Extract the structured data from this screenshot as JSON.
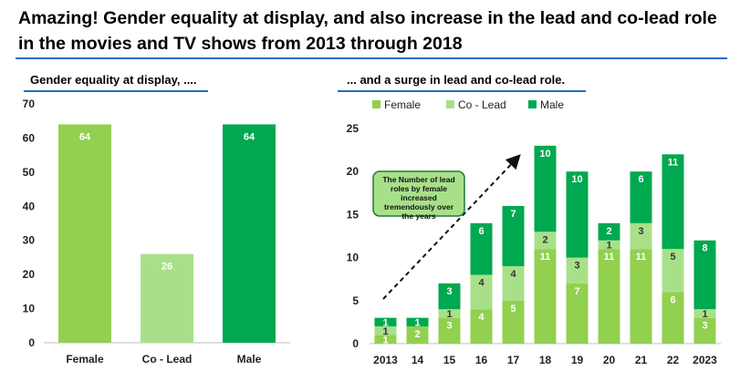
{
  "page": {
    "title": "Amazing! Gender equality at display, and also increase in the lead and co-lead role in the movies and TV shows from 2013 through 2018"
  },
  "colors": {
    "female": "#92d050",
    "colead": "#a8e08a",
    "male": "#00a84f",
    "accent_rule": "#1f6fc5",
    "callout_fill": "#a8e08a",
    "callout_border": "#1e7a3a"
  },
  "chart_data": [
    {
      "type": "bar",
      "title": "Gender equality at display, ....",
      "categories": [
        "Female",
        "Co - Lead",
        "Male"
      ],
      "values": [
        64,
        26,
        64
      ],
      "bar_colors": [
        "#92d050",
        "#a8e08a",
        "#00a84f"
      ],
      "ylim": [
        0,
        70
      ],
      "yticks": [
        0,
        10,
        20,
        30,
        40,
        50,
        60,
        70
      ],
      "xlabel": "",
      "ylabel": "",
      "grid": false
    },
    {
      "type": "bar",
      "stacked": true,
      "title": "... and a surge in lead and co-lead role.",
      "categories": [
        "2013",
        "14",
        "15",
        "16",
        "17",
        "18",
        "19",
        "20",
        "21",
        "22",
        "2023"
      ],
      "series": [
        {
          "name": "Female",
          "color": "#92d050",
          "values": [
            1,
            2,
            3,
            4,
            5,
            11,
            7,
            11,
            11,
            6,
            3
          ]
        },
        {
          "name": "Co - Lead",
          "color": "#a8e08a",
          "values": [
            1,
            0,
            1,
            4,
            4,
            2,
            3,
            1,
            3,
            5,
            1
          ]
        },
        {
          "name": "Male",
          "color": "#00a84f",
          "values": [
            1,
            1,
            3,
            6,
            7,
            10,
            10,
            2,
            6,
            11,
            8
          ]
        }
      ],
      "ylim": [
        0,
        25
      ],
      "yticks": [
        0,
        5,
        10,
        15,
        20,
        25
      ],
      "legend": "top",
      "grid": false,
      "annotation": "The Number of lead roles by female increased tremendously over the years",
      "trend_arrow": true
    }
  ]
}
